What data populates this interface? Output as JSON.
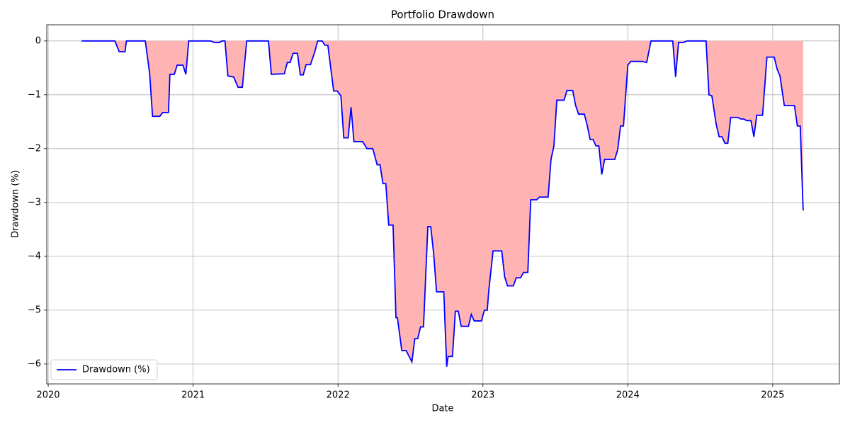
{
  "chart_data": {
    "type": "line",
    "title": "Portfolio Drawdown",
    "x_label": "Date",
    "y_label": "Drawdown (%)",
    "x": [
      2020.23,
      2020.46,
      2020.49,
      2020.53,
      2020.54,
      2020.67,
      2020.7,
      2020.72,
      2020.77,
      2020.79,
      2020.83,
      2020.84,
      2020.87,
      2020.89,
      2020.93,
      2020.95,
      2020.97,
      2021.12,
      2021.15,
      2021.18,
      2021.2,
      2021.22,
      2021.24,
      2021.28,
      2021.31,
      2021.34,
      2021.37,
      2021.52,
      2021.54,
      2021.63,
      2021.65,
      2021.67,
      2021.69,
      2021.72,
      2021.74,
      2021.76,
      2021.78,
      2021.81,
      2021.84,
      2021.86,
      2021.89,
      2021.91,
      2021.93,
      2021.97,
      2021.995,
      2022.02,
      2022.04,
      2022.07,
      2022.09,
      2022.11,
      2022.17,
      2022.2,
      2022.24,
      2022.27,
      2022.29,
      2022.31,
      2022.33,
      2022.35,
      2022.38,
      2022.4,
      2022.41,
      2022.44,
      2022.47,
      2022.51,
      2022.53,
      2022.55,
      2022.57,
      2022.59,
      2022.62,
      2022.64,
      2022.66,
      2022.68,
      2022.73,
      2022.75,
      2022.76,
      2022.79,
      2022.81,
      2022.83,
      2022.85,
      2022.9,
      2022.92,
      2022.94,
      2022.99,
      2023.01,
      2023.03,
      2023.04,
      2023.07,
      2023.13,
      2023.15,
      2023.17,
      2023.21,
      2023.23,
      2023.26,
      2023.28,
      2023.31,
      2023.33,
      2023.37,
      2023.39,
      2023.45,
      2023.47,
      2023.49,
      2023.51,
      2023.56,
      2023.58,
      2023.62,
      2023.64,
      2023.66,
      2023.7,
      2023.72,
      2023.74,
      2023.76,
      2023.78,
      2023.8,
      2023.82,
      2023.84,
      2023.91,
      2023.93,
      2023.95,
      2023.97,
      2024.0,
      2024.02,
      2024.1,
      2024.13,
      2024.16,
      2024.31,
      2024.33,
      2024.35,
      2024.38,
      2024.41,
      2024.54,
      2024.56,
      2024.58,
      2024.61,
      2024.63,
      2024.65,
      2024.67,
      2024.69,
      2024.71,
      2024.76,
      2024.78,
      2024.8,
      2024.82,
      2024.85,
      2024.87,
      2024.89,
      2024.93,
      2024.96,
      2025.01,
      2025.03,
      2025.05,
      2025.08,
      2025.15,
      2025.17,
      2025.19,
      2025.21
    ],
    "series": [
      {
        "name": "Drawdown (%)",
        "color": "#0000ff",
        "values": [
          0,
          0,
          -0.2,
          -0.2,
          0,
          0,
          -0.6,
          -1.4,
          -1.4,
          -1.33,
          -1.33,
          -0.62,
          -0.62,
          -0.45,
          -0.45,
          -0.62,
          0,
          0,
          -0.03,
          -0.03,
          0,
          0,
          -0.65,
          -0.67,
          -0.86,
          -0.86,
          0,
          0,
          -0.62,
          -0.61,
          -0.4,
          -0.4,
          -0.23,
          -0.23,
          -0.63,
          -0.63,
          -0.44,
          -0.44,
          -0.2,
          0,
          0,
          -0.08,
          -0.08,
          -0.93,
          -0.93,
          -1.02,
          -1.8,
          -1.8,
          -1.23,
          -1.87,
          -1.87,
          -2.0,
          -2.0,
          -2.3,
          -2.3,
          -2.65,
          -2.65,
          -3.42,
          -3.42,
          -5.14,
          -5.14,
          -5.75,
          -5.75,
          -5.96,
          -5.53,
          -5.53,
          -5.31,
          -5.31,
          -3.45,
          -3.45,
          -3.95,
          -4.66,
          -4.66,
          -6.05,
          -5.86,
          -5.86,
          -5.02,
          -5.02,
          -5.3,
          -5.3,
          -5.08,
          -5.2,
          -5.2,
          -5.0,
          -5.0,
          -4.65,
          -3.9,
          -3.9,
          -4.38,
          -4.55,
          -4.55,
          -4.4,
          -4.4,
          -4.3,
          -4.3,
          -2.95,
          -2.95,
          -2.9,
          -2.9,
          -2.2,
          -1.95,
          -1.1,
          -1.1,
          -0.92,
          -0.92,
          -1.2,
          -1.36,
          -1.36,
          -1.57,
          -1.83,
          -1.83,
          -1.95,
          -1.95,
          -2.48,
          -2.2,
          -2.2,
          -2.02,
          -1.58,
          -1.58,
          -0.45,
          -0.38,
          -0.38,
          -0.4,
          0,
          0,
          -0.67,
          -0.03,
          -0.03,
          0,
          0,
          -1.0,
          -1.02,
          -1.55,
          -1.78,
          -1.78,
          -1.9,
          -1.9,
          -1.42,
          -1.42,
          -1.45,
          -1.45,
          -1.48,
          -1.48,
          -1.78,
          -1.38,
          -1.38,
          -0.3,
          -0.3,
          -0.52,
          -0.65,
          -1.2,
          -1.2,
          -1.58,
          -1.58,
          -3.15
        ]
      }
    ],
    "fill_color": "#ffb3b3",
    "xlim": [
      2019.99,
      2025.46
    ],
    "ylim": [
      -6.37,
      0.3
    ],
    "xticks": [
      2020,
      2021,
      2022,
      2023,
      2024,
      2025
    ],
    "yticks": [
      {
        "value": -6,
        "label": "−6"
      },
      {
        "value": -5,
        "label": "−5"
      },
      {
        "value": -4,
        "label": "−4"
      },
      {
        "value": -3,
        "label": "−3"
      },
      {
        "value": -2,
        "label": "−2"
      },
      {
        "value": -1,
        "label": "−1"
      },
      0
    ],
    "grid": true,
    "legend": "lower left"
  }
}
